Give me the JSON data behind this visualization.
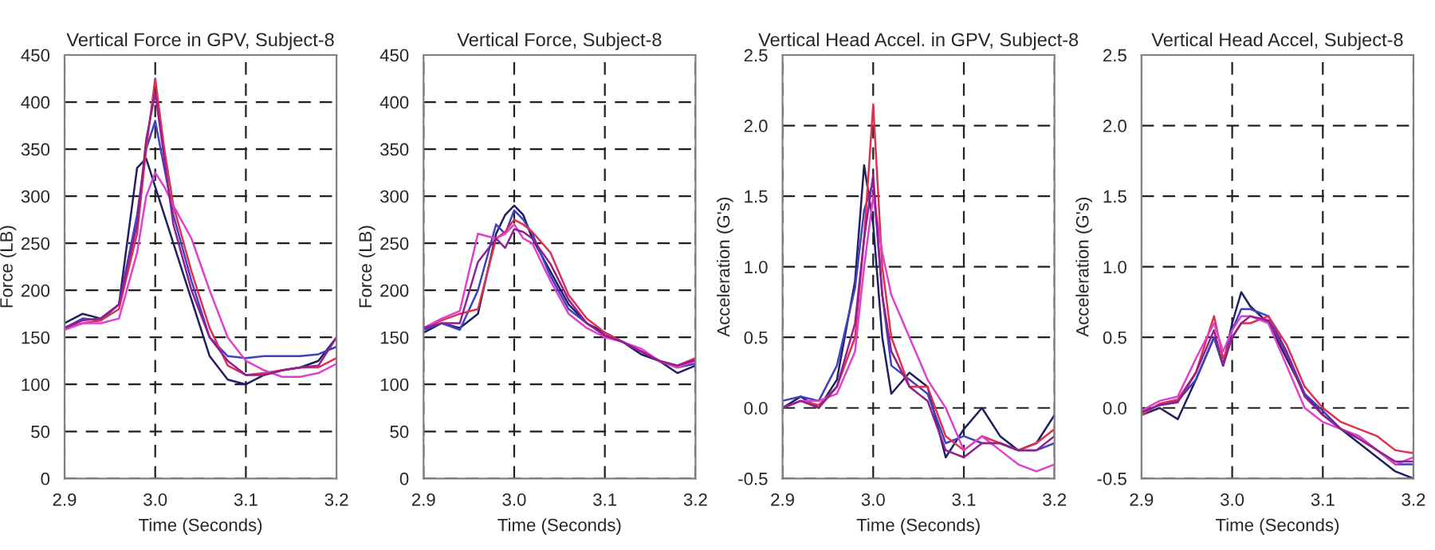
{
  "chart_data": [
    {
      "type": "line",
      "title": "Vertical Force in GPV, Subject-8",
      "xlabel": "Time (Seconds)",
      "ylabel": "Force (LB)",
      "xlim": [
        2.9,
        3.2
      ],
      "xticks": [
        {
          "value": 2.9,
          "label": "2.9"
        },
        {
          "value": 3.0,
          "label": "3.0"
        },
        {
          "value": 3.1,
          "label": "3.1"
        },
        {
          "value": 3.2,
          "label": "3.2"
        }
      ],
      "ylim": [
        0,
        450
      ],
      "yticks": [
        0,
        50,
        100,
        150,
        200,
        250,
        300,
        350,
        400,
        450
      ],
      "grid": true,
      "legend": false,
      "line_style": "solid",
      "marker": "none",
      "x": [
        2.9,
        2.92,
        2.94,
        2.96,
        2.98,
        2.99,
        3.0,
        3.01,
        3.02,
        3.04,
        3.06,
        3.08,
        3.1,
        3.12,
        3.14,
        3.16,
        3.18,
        3.2
      ],
      "series": [
        {
          "color": "#202060",
          "values": [
            165,
            175,
            170,
            185,
            330,
            340,
            310,
            280,
            250,
            190,
            130,
            105,
            100,
            110,
            115,
            118,
            125,
            150
          ]
        },
        {
          "color": "#4040c0",
          "values": [
            160,
            170,
            168,
            185,
            280,
            350,
            380,
            330,
            280,
            210,
            150,
            130,
            128,
            130,
            130,
            130,
            132,
            140
          ]
        },
        {
          "color": "#e03050",
          "values": [
            160,
            165,
            168,
            180,
            260,
            350,
            425,
            350,
            290,
            220,
            160,
            120,
            110,
            112,
            115,
            118,
            118,
            128
          ]
        },
        {
          "color": "#e040d0",
          "values": [
            158,
            165,
            165,
            170,
            240,
            300,
            325,
            310,
            290,
            255,
            200,
            150,
            125,
            115,
            108,
            108,
            112,
            122
          ]
        },
        {
          "color": "#902090",
          "values": [
            160,
            168,
            170,
            185,
            270,
            360,
            410,
            340,
            270,
            200,
            150,
            125,
            110,
            110,
            115,
            118,
            120,
            150
          ]
        }
      ]
    },
    {
      "type": "line",
      "title": "Vertical Force, Subject-8",
      "xlabel": "Time (Seconds)",
      "ylabel": "Force (LB)",
      "xlim": [
        2.9,
        3.2
      ],
      "xticks": [
        {
          "value": 2.9,
          "label": "2.9"
        },
        {
          "value": 3.0,
          "label": "3.0"
        },
        {
          "value": 3.1,
          "label": "3.1"
        },
        {
          "value": 3.2,
          "label": "3.2"
        }
      ],
      "ylim": [
        0,
        450
      ],
      "yticks": [
        0,
        50,
        100,
        150,
        200,
        250,
        300,
        350,
        400,
        450
      ],
      "grid": true,
      "legend": false,
      "line_style": "solid",
      "marker": "none",
      "x": [
        2.9,
        2.92,
        2.94,
        2.96,
        2.98,
        2.99,
        3.0,
        3.01,
        3.02,
        3.04,
        3.06,
        3.08,
        3.1,
        3.12,
        3.14,
        3.16,
        3.18,
        3.2
      ],
      "series": [
        {
          "color": "#202060",
          "values": [
            155,
            165,
            160,
            175,
            260,
            280,
            290,
            280,
            255,
            220,
            185,
            165,
            155,
            145,
            132,
            125,
            112,
            120
          ]
        },
        {
          "color": "#4040c0",
          "values": [
            158,
            165,
            158,
            200,
            270,
            260,
            285,
            275,
            260,
            215,
            180,
            165,
            152,
            145,
            135,
            125,
            118,
            122
          ]
        },
        {
          "color": "#e03050",
          "values": [
            160,
            168,
            175,
            180,
            255,
            262,
            275,
            270,
            262,
            240,
            195,
            170,
            155,
            145,
            135,
            125,
            120,
            128
          ]
        },
        {
          "color": "#e040d0",
          "values": [
            160,
            170,
            178,
            260,
            255,
            260,
            270,
            255,
            250,
            210,
            175,
            160,
            150,
            145,
            138,
            125,
            118,
            125
          ]
        },
        {
          "color": "#902090",
          "values": [
            160,
            165,
            165,
            230,
            255,
            245,
            265,
            262,
            255,
            228,
            190,
            165,
            152,
            145,
            135,
            125,
            120,
            126
          ]
        }
      ]
    },
    {
      "type": "line",
      "title": "Vertical Head Accel. in GPV, Subject-8",
      "xlabel": "Time (Seconds)",
      "ylabel": "Acceleration (G's)",
      "xlim": [
        2.9,
        3.2
      ],
      "xticks": [
        {
          "value": 2.9,
          "label": "2.9"
        },
        {
          "value": 3.0,
          "label": "3.0"
        },
        {
          "value": 3.1,
          "label": "3.1"
        },
        {
          "value": 3.2,
          "label": "3.2"
        }
      ],
      "ylim": [
        -0.5,
        2.5
      ],
      "yticks": [
        {
          "value": -0.5,
          "label": "-0.5"
        },
        {
          "value": 0,
          "label": "0.0"
        },
        {
          "value": 0.5,
          "label": "0.5"
        },
        {
          "value": 1,
          "label": "1.0"
        },
        {
          "value": 1.5,
          "label": "1.5"
        },
        {
          "value": 2,
          "label": "2.0"
        },
        {
          "value": 2.5,
          "label": "2.5"
        }
      ],
      "grid": true,
      "legend": false,
      "line_style": "solid",
      "marker": "none",
      "x": [
        2.9,
        2.92,
        2.94,
        2.96,
        2.98,
        2.99,
        3.0,
        3.01,
        3.02,
        3.04,
        3.06,
        3.08,
        3.1,
        3.12,
        3.14,
        3.16,
        3.18,
        3.2
      ],
      "series": [
        {
          "color": "#202060",
          "values": [
            0.0,
            0.08,
            0.0,
            0.2,
            0.9,
            1.72,
            1.3,
            0.5,
            0.1,
            0.25,
            0.15,
            -0.35,
            -0.15,
            0.0,
            -0.2,
            -0.3,
            -0.25,
            -0.05
          ]
        },
        {
          "color": "#4040c0",
          "values": [
            0.05,
            0.08,
            0.05,
            0.3,
            0.85,
            1.4,
            1.6,
            0.8,
            0.3,
            0.2,
            0.1,
            -0.25,
            -0.2,
            -0.25,
            -0.25,
            -0.3,
            -0.3,
            -0.25
          ]
        },
        {
          "color": "#e03050",
          "values": [
            0.0,
            0.05,
            0.02,
            0.15,
            0.5,
            1.2,
            2.15,
            1.0,
            0.5,
            0.15,
            0.15,
            -0.2,
            -0.3,
            -0.2,
            -0.25,
            -0.3,
            -0.25,
            -0.15
          ]
        },
        {
          "color": "#e040d0",
          "values": [
            0.0,
            0.05,
            0.05,
            0.1,
            0.4,
            1.0,
            1.5,
            1.1,
            0.8,
            0.5,
            0.2,
            0.0,
            -0.3,
            -0.2,
            -0.3,
            -0.4,
            -0.45,
            -0.4
          ]
        },
        {
          "color": "#902090",
          "values": [
            0.0,
            0.05,
            0.0,
            0.15,
            0.6,
            1.2,
            1.65,
            0.8,
            0.4,
            0.15,
            0.05,
            -0.3,
            -0.35,
            -0.25,
            -0.25,
            -0.3,
            -0.3,
            -0.2
          ]
        }
      ]
    },
    {
      "type": "line",
      "title": "Vertical Head Accel, Subject-8",
      "xlabel": "Time (Seconds)",
      "ylabel": "Acceleration (G's)",
      "xlim": [
        2.9,
        3.2
      ],
      "xticks": [
        {
          "value": 2.9,
          "label": "2.9"
        },
        {
          "value": 3.0,
          "label": "3.0"
        },
        {
          "value": 3.1,
          "label": "3.1"
        },
        {
          "value": 3.2,
          "label": "3.2"
        }
      ],
      "ylim": [
        -0.5,
        2.5
      ],
      "yticks": [
        {
          "value": -0.5,
          "label": "-0.5"
        },
        {
          "value": 0,
          "label": "0.0"
        },
        {
          "value": 0.5,
          "label": "0.5"
        },
        {
          "value": 1,
          "label": "1.0"
        },
        {
          "value": 1.5,
          "label": "1.5"
        },
        {
          "value": 2,
          "label": "2.0"
        },
        {
          "value": 2.5,
          "label": "2.5"
        }
      ],
      "grid": true,
      "legend": false,
      "line_style": "solid",
      "marker": "none",
      "x": [
        2.9,
        2.92,
        2.94,
        2.96,
        2.98,
        2.99,
        3.0,
        3.01,
        3.02,
        3.04,
        3.06,
        3.08,
        3.1,
        3.12,
        3.14,
        3.16,
        3.18,
        3.2
      ],
      "series": [
        {
          "color": "#202060",
          "values": [
            -0.05,
            0.0,
            -0.08,
            0.2,
            0.5,
            0.3,
            0.6,
            0.82,
            0.72,
            0.6,
            0.35,
            0.1,
            -0.05,
            -0.15,
            -0.25,
            -0.35,
            -0.45,
            -0.5
          ]
        },
        {
          "color": "#4040c0",
          "values": [
            -0.03,
            0.02,
            0.05,
            0.2,
            0.5,
            0.3,
            0.55,
            0.7,
            0.7,
            0.65,
            0.4,
            0.1,
            -0.02,
            -0.15,
            -0.2,
            -0.3,
            -0.4,
            -0.4
          ]
        },
        {
          "color": "#e03050",
          "values": [
            -0.05,
            0.03,
            0.06,
            0.25,
            0.65,
            0.35,
            0.5,
            0.6,
            0.6,
            0.65,
            0.45,
            0.15,
            0.0,
            -0.1,
            -0.15,
            -0.2,
            -0.3,
            -0.32
          ]
        },
        {
          "color": "#e040d0",
          "values": [
            -0.02,
            0.05,
            0.08,
            0.35,
            0.6,
            0.4,
            0.55,
            0.65,
            0.65,
            0.6,
            0.3,
            0.0,
            -0.1,
            -0.15,
            -0.2,
            -0.3,
            -0.4,
            -0.35
          ]
        },
        {
          "color": "#902090",
          "values": [
            -0.03,
            0.02,
            0.04,
            0.25,
            0.55,
            0.3,
            0.5,
            0.6,
            0.65,
            0.62,
            0.38,
            0.08,
            -0.05,
            -0.15,
            -0.22,
            -0.3,
            -0.38,
            -0.38
          ]
        }
      ]
    }
  ]
}
